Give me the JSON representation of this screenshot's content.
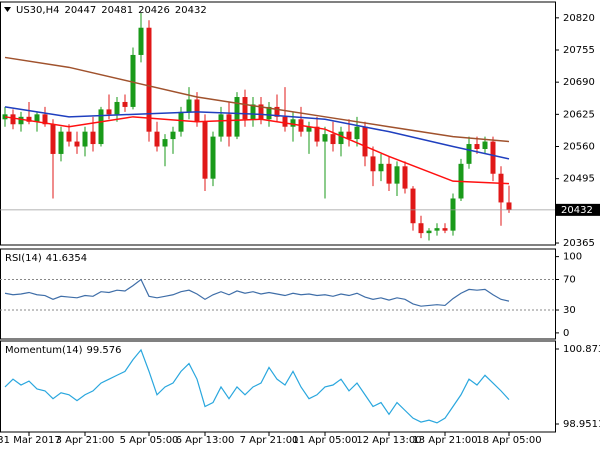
{
  "chart_data": [
    {
      "type": "candlestick",
      "title": "US30,H4",
      "categories": [
        null,
        null,
        null,
        "31 Mar 2017",
        null,
        null,
        null,
        null,
        null,
        null,
        "3 Apr 21:00",
        null,
        null,
        null,
        null,
        null,
        null,
        null,
        "5 Apr 05:00",
        null,
        null,
        null,
        null,
        null,
        null,
        "6 Apr 13:00",
        null,
        null,
        null,
        null,
        null,
        null,
        null,
        "7 Apr 21:00",
        null,
        null,
        null,
        null,
        null,
        null,
        "11 Apr 05:00",
        null,
        null,
        null,
        null,
        null,
        null,
        null,
        "12 Apr 13:00",
        null,
        null,
        null,
        null,
        null,
        null,
        "13 Apr 21:00",
        null,
        null,
        null,
        null,
        null,
        null,
        null,
        "18 Apr 05:00"
      ],
      "open": [
        20615,
        20625,
        20605,
        20620,
        20610,
        20625,
        20605,
        20545,
        20590,
        20570,
        20560,
        20590,
        20565,
        20635,
        20625,
        20650,
        20640,
        20745,
        20800,
        20590,
        20560,
        20575,
        20590,
        20630,
        20655,
        20610,
        20495,
        20580,
        20625,
        20580,
        20660,
        20615,
        20645,
        20615,
        20640,
        20620,
        20600,
        20615,
        20590,
        20600,
        20570,
        20585,
        20565,
        20590,
        20575,
        20600,
        20540,
        20510,
        20525,
        20485,
        20520,
        20475,
        20405,
        20385,
        20390,
        20395,
        20390,
        20455,
        20525,
        20565,
        20555,
        20570,
        20505,
        20447
      ],
      "high": [
        20640,
        20635,
        20630,
        20650,
        20630,
        20640,
        20615,
        20600,
        20605,
        20590,
        20600,
        20620,
        20640,
        20665,
        20660,
        20665,
        20760,
        20830,
        20815,
        20610,
        20585,
        20600,
        20640,
        20680,
        20670,
        20625,
        20590,
        20640,
        20650,
        20670,
        20675,
        20660,
        20660,
        20650,
        20665,
        20680,
        20630,
        20640,
        20610,
        20620,
        20600,
        20610,
        20600,
        20615,
        20620,
        20610,
        20560,
        20545,
        20540,
        20530,
        20530,
        20480,
        20420,
        20395,
        20405,
        20405,
        20465,
        20535,
        20580,
        20580,
        20580,
        20580,
        20520,
        20481
      ],
      "low": [
        20600,
        20595,
        20590,
        20605,
        20590,
        20600,
        20455,
        20530,
        20560,
        20545,
        20540,
        20550,
        20560,
        20615,
        20610,
        20630,
        20635,
        20730,
        20570,
        20550,
        20520,
        20545,
        20580,
        20615,
        20600,
        20470,
        20480,
        20570,
        20560,
        20575,
        20600,
        20600,
        20605,
        20600,
        20610,
        20590,
        20570,
        20580,
        20545,
        20560,
        20455,
        20550,
        20540,
        20560,
        20560,
        20520,
        20480,
        20490,
        20470,
        20460,
        20465,
        20390,
        20375,
        20370,
        20380,
        20385,
        20380,
        20450,
        20515,
        20545,
        20545,
        20490,
        20400,
        20426
      ],
      "close": [
        20625,
        20605,
        20620,
        20610,
        20625,
        20605,
        20545,
        20590,
        20570,
        20560,
        20590,
        20565,
        20635,
        20625,
        20650,
        20640,
        20745,
        20800,
        20590,
        20560,
        20575,
        20590,
        20630,
        20655,
        20610,
        20495,
        20580,
        20625,
        20580,
        20660,
        20615,
        20645,
        20615,
        20640,
        20620,
        20600,
        20615,
        20590,
        20600,
        20570,
        20585,
        20565,
        20590,
        20575,
        20600,
        20540,
        20510,
        20525,
        20485,
        20520,
        20475,
        20405,
        20385,
        20390,
        20395,
        20390,
        20455,
        20525,
        20565,
        20555,
        20570,
        20505,
        20447,
        20432
      ],
      "up_color": "#1a9a1a",
      "down_color": "#e01818",
      "lines": [
        {
          "color": "#a0522d",
          "x": [
            0,
            8,
            16,
            24,
            32,
            40,
            48,
            56,
            63
          ],
          "values": [
            20740,
            20720,
            20690,
            20660,
            20640,
            20620,
            20600,
            20580,
            20570
          ]
        },
        {
          "color": "#1f3fbf",
          "x": [
            0,
            8,
            16,
            24,
            32,
            40,
            48,
            56,
            63
          ],
          "values": [
            20640,
            20620,
            20625,
            20630,
            20625,
            20615,
            20590,
            20560,
            20535
          ]
        },
        {
          "color": "#ff1010",
          "x": [
            0,
            8,
            16,
            24,
            32,
            40,
            48,
            56,
            63
          ],
          "values": [
            20620,
            20600,
            20620,
            20610,
            20615,
            20595,
            20540,
            20490,
            20485
          ]
        }
      ],
      "ylim": [
        20361,
        20852
      ],
      "yticks": [
        20820,
        20755,
        20690,
        20625,
        20560,
        20495,
        20365
      ]
    },
    {
      "type": "line",
      "title": "RSI(14)",
      "color": "#3f6ea8",
      "values": [
        52,
        50,
        51,
        53,
        50,
        49,
        44,
        48,
        47,
        46,
        49,
        48,
        54,
        53,
        56,
        55,
        62,
        70,
        48,
        46,
        48,
        50,
        54,
        56,
        51,
        44,
        50,
        54,
        50,
        55,
        52,
        54,
        51,
        53,
        51,
        49,
        52,
        50,
        51,
        49,
        50,
        48,
        51,
        49,
        52,
        47,
        44,
        46,
        43,
        46,
        44,
        38,
        35,
        36,
        37,
        36,
        45,
        52,
        57,
        56,
        57,
        50,
        44,
        41.6354
      ],
      "levels": [
        70,
        30
      ],
      "ylim": [
        -8,
        110
      ],
      "yticks": [
        100,
        70,
        30,
        0
      ]
    },
    {
      "type": "line",
      "title": "Momentum(14)",
      "color": "#2aa7de",
      "values": [
        99.9,
        100.1,
        99.95,
        100.05,
        99.85,
        99.8,
        99.6,
        99.75,
        99.7,
        99.55,
        99.7,
        99.8,
        100.0,
        100.1,
        100.2,
        100.3,
        100.6,
        100.85,
        100.3,
        99.7,
        99.9,
        100.0,
        100.3,
        100.5,
        100.1,
        99.4,
        99.5,
        99.9,
        99.6,
        99.9,
        99.7,
        99.9,
        100.0,
        100.4,
        100.1,
        99.95,
        100.3,
        99.9,
        99.6,
        99.7,
        99.9,
        99.95,
        100.1,
        99.8,
        100.0,
        99.7,
        99.4,
        99.5,
        99.2,
        99.5,
        99.3,
        99.1,
        99.0,
        99.05,
        98.98,
        99.1,
        99.4,
        99.7,
        100.1,
        99.95,
        100.2,
        100.0,
        99.8,
        99.576
      ],
      "ylim": [
        98.746,
        101.078
      ],
      "yticks": [
        100.8732,
        98.9511
      ]
    }
  ]
}
